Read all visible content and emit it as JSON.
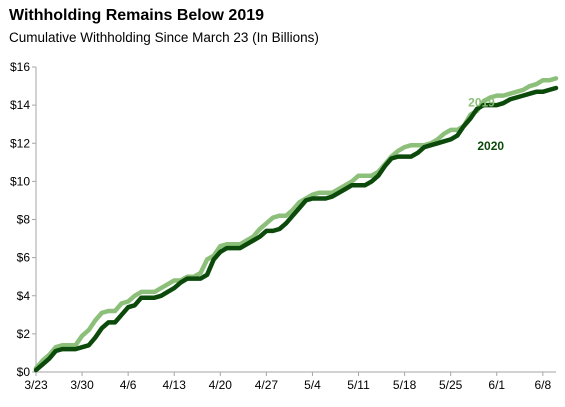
{
  "chart_data": {
    "type": "line",
    "title": "Withholding Remains Below 2019",
    "subtitle": "Cumulative Withholding Since March 23 (In Billions)",
    "xlabel": "",
    "ylabel": "",
    "ylim": [
      0,
      16
    ],
    "yticks": [
      0,
      2,
      4,
      6,
      8,
      10,
      12,
      14,
      16
    ],
    "ytick_labels": [
      "$0",
      "$2",
      "$4",
      "$6",
      "$8",
      "$10",
      "$12",
      "$14",
      "$16"
    ],
    "xlim": [
      0,
      79
    ],
    "xticks": [
      0,
      7,
      14,
      21,
      28,
      35,
      42,
      49,
      56,
      63,
      70,
      77
    ],
    "xtick_labels": [
      "3/23",
      "3/30",
      "4/6",
      "4/13",
      "4/20",
      "4/27",
      "5/4",
      "5/11",
      "5/18",
      "5/25",
      "6/1",
      "6/8"
    ],
    "grid": false,
    "legend": "inline labels",
    "series": [
      {
        "name": "2019",
        "color": "#8cc07a",
        "x": [
          0,
          1,
          2,
          3,
          4,
          5,
          6,
          7,
          8,
          9,
          10,
          11,
          12,
          13,
          14,
          15,
          16,
          17,
          18,
          19,
          20,
          21,
          22,
          23,
          24,
          25,
          26,
          27,
          28,
          29,
          30,
          31,
          32,
          33,
          34,
          35,
          36,
          37,
          38,
          39,
          40,
          41,
          42,
          43,
          44,
          45,
          46,
          47,
          48,
          49,
          50,
          51,
          52,
          53,
          54,
          55,
          56,
          57,
          58,
          59,
          60,
          61,
          62,
          63,
          64,
          65,
          66,
          67,
          68,
          69,
          70,
          71,
          72,
          73,
          74,
          75,
          76,
          77,
          78,
          79
        ],
        "values": [
          0.2,
          0.6,
          0.9,
          1.3,
          1.4,
          1.4,
          1.4,
          1.9,
          2.2,
          2.7,
          3.1,
          3.2,
          3.2,
          3.6,
          3.7,
          4.0,
          4.2,
          4.2,
          4.2,
          4.4,
          4.6,
          4.8,
          4.8,
          5.0,
          5.0,
          5.2,
          5.9,
          6.1,
          6.6,
          6.7,
          6.7,
          6.7,
          6.9,
          7.1,
          7.5,
          7.8,
          8.1,
          8.2,
          8.2,
          8.5,
          8.9,
          9.1,
          9.3,
          9.4,
          9.4,
          9.4,
          9.6,
          9.8,
          10.0,
          10.3,
          10.3,
          10.3,
          10.5,
          10.9,
          11.3,
          11.6,
          11.8,
          11.9,
          11.9,
          11.9,
          12.0,
          12.2,
          12.5,
          12.7,
          12.7,
          12.9,
          13.5,
          13.7,
          14.2,
          14.4,
          14.5,
          14.5,
          14.6,
          14.7,
          14.8,
          15.0,
          15.1,
          15.3,
          15.3,
          15.4
        ]
      },
      {
        "name": "2020",
        "color": "#0b4a0b",
        "x": [
          0,
          1,
          2,
          3,
          4,
          5,
          6,
          7,
          8,
          9,
          10,
          11,
          12,
          13,
          14,
          15,
          16,
          17,
          18,
          19,
          20,
          21,
          22,
          23,
          24,
          25,
          26,
          27,
          28,
          29,
          30,
          31,
          32,
          33,
          34,
          35,
          36,
          37,
          38,
          39,
          40,
          41,
          42,
          43,
          44,
          45,
          46,
          47,
          48,
          49,
          50,
          51,
          52,
          53,
          54,
          55,
          56,
          57,
          58,
          59,
          60,
          61,
          62,
          63,
          64,
          65,
          66,
          67,
          68,
          69,
          70,
          71,
          72,
          73,
          74,
          75,
          76,
          77,
          78,
          79
        ],
        "values": [
          0.1,
          0.4,
          0.7,
          1.1,
          1.2,
          1.2,
          1.2,
          1.3,
          1.4,
          1.8,
          2.3,
          2.6,
          2.6,
          3.0,
          3.4,
          3.5,
          3.9,
          3.9,
          3.9,
          4.0,
          4.2,
          4.4,
          4.7,
          4.9,
          4.9,
          4.9,
          5.1,
          5.9,
          6.3,
          6.5,
          6.5,
          6.5,
          6.7,
          6.9,
          7.1,
          7.4,
          7.4,
          7.5,
          7.8,
          8.2,
          8.6,
          9.0,
          9.1,
          9.1,
          9.1,
          9.2,
          9.4,
          9.6,
          9.8,
          9.8,
          9.8,
          10.0,
          10.3,
          10.8,
          11.2,
          11.3,
          11.3,
          11.3,
          11.5,
          11.8,
          11.9,
          12.0,
          12.1,
          12.2,
          12.4,
          12.9,
          13.3,
          13.8,
          14.0,
          14.0,
          14.0,
          14.1,
          14.3,
          14.4,
          14.5,
          14.6,
          14.7,
          14.7,
          14.8,
          14.9
        ]
      }
    ]
  }
}
